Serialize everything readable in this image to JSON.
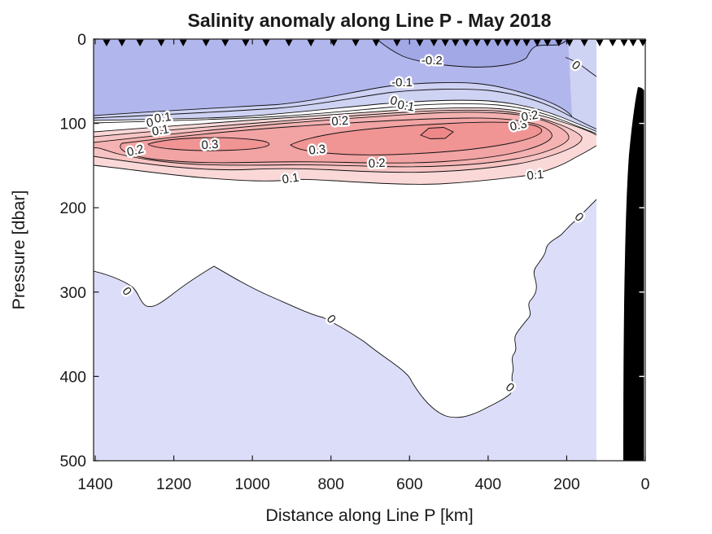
{
  "figure": {
    "title": "Salinity anomaly along Line P - May 2018",
    "xlabel": "Distance along Line P [km]",
    "ylabel": "Pressure [dbar]"
  },
  "chart_data": {
    "type": "filled-contour-section",
    "title": "Salinity anomaly along Line P - May 2018",
    "xlabel": "Distance along Line P [km]",
    "ylabel": "Pressure [dbar]",
    "x_axis": {
      "ticks": [
        1400,
        1200,
        1000,
        800,
        600,
        400,
        200,
        0
      ],
      "range": [
        1400,
        0
      ],
      "direction": "reversed"
    },
    "y_axis": {
      "ticks": [
        0,
        100,
        200,
        300,
        400,
        500
      ],
      "range": [
        0,
        500
      ],
      "direction": "increasing-downward"
    },
    "labeled_contour_levels": [
      -0.2,
      -0.1,
      0,
      0.1,
      0.2,
      0.3
    ],
    "contour_interval": 0.05,
    "station_marker_symbol": "filled-down-triangle",
    "station_distances_km": [
      1371,
      1332,
      1286,
      1232,
      1176,
      1118,
      1069,
      1017,
      965,
      907,
      851,
      793,
      737,
      685,
      632,
      574,
      538,
      509,
      483,
      456,
      429,
      402,
      375,
      352,
      327,
      302,
      275,
      249,
      220,
      193,
      155,
      116,
      83,
      54,
      31,
      6
    ],
    "contour_labels": [
      {
        "text": "-0.2",
        "km": 543,
        "dbar": 25,
        "rot": 0
      },
      {
        "text": "-0.1",
        "km": 619,
        "dbar": 51,
        "rot": 0
      },
      {
        "text": "0",
        "km": 640,
        "dbar": 73,
        "rot": 15
      },
      {
        "text": "0.1",
        "km": 609,
        "dbar": 79,
        "rot": 10
      },
      {
        "text": "0",
        "km": 176,
        "dbar": 31,
        "rot": 40
      },
      {
        "text": "0.1",
        "km": 1228,
        "dbar": 93,
        "rot": -8
      },
      {
        "text": "0",
        "km": 1261,
        "dbar": 99,
        "rot": -12
      },
      {
        "text": "0.1",
        "km": 1234,
        "dbar": 108,
        "rot": -10
      },
      {
        "text": "0.2",
        "km": 1298,
        "dbar": 132,
        "rot": -14
      },
      {
        "text": "0.3",
        "km": 1108,
        "dbar": 125,
        "rot": -4
      },
      {
        "text": "0.2",
        "km": 777,
        "dbar": 97,
        "rot": -4
      },
      {
        "text": "0.3",
        "km": 835,
        "dbar": 131,
        "rot": -6
      },
      {
        "text": "0.2",
        "km": 683,
        "dbar": 147,
        "rot": -3
      },
      {
        "text": "0.3",
        "km": 323,
        "dbar": 102,
        "rot": -12
      },
      {
        "text": "0.2",
        "km": 294,
        "dbar": 91,
        "rot": -10
      },
      {
        "text": "0.1",
        "km": 903,
        "dbar": 165,
        "rot": -8
      },
      {
        "text": "0.1",
        "km": 280,
        "dbar": 161,
        "rot": -6
      },
      {
        "text": "0",
        "km": 1319,
        "dbar": 299,
        "rot": 52
      },
      {
        "text": "0",
        "km": 799,
        "dbar": 332,
        "rot": 48
      },
      {
        "text": "0",
        "km": 344,
        "dbar": 413,
        "rot": 42
      },
      {
        "text": "0",
        "km": 168,
        "dbar": 211,
        "rot": 45
      }
    ],
    "fill_colors": {
      "below_-0.2": "#a2a8e6",
      "-0.2_to_-0.1": "#b1b6ec",
      "-0.1_to_0": "#ced2f3",
      "deep_negative_region": "#dcddf8",
      "near_zero": "#ffffff",
      "0.1_to_0.15": "#fad8d8",
      "0.15_to_0.2": "#f7c4c4",
      "0.2_to_0.25": "#f5b2b2",
      "0.25_to_0.3": "#f2a3a3",
      "0.3_to_0.35": "#f09494",
      "above_0.35": "#ee8888",
      "bathymetry": "#000000",
      "contour_line": "#111111"
    },
    "notable_features": {
      "positive_anomaly_core_dbar": [
        100,
        170
      ],
      "negative_surface_layer_dbar": [
        0,
        90
      ],
      "seafloor_mask": "black wedge near 0 km from ~60 dbar to 500 dbar"
    }
  }
}
